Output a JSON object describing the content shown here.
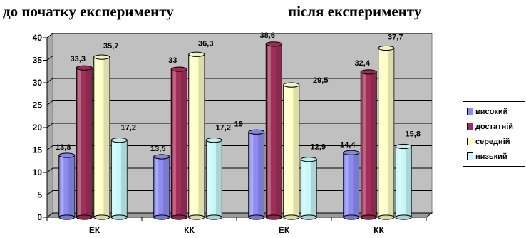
{
  "headings": {
    "before": "до початку експерименту",
    "after": "після експерименту"
  },
  "chart_data": {
    "type": "bar",
    "title": "",
    "xlabel": "",
    "ylabel": "",
    "categories": [
      "ЕК",
      "КК",
      "ЕК",
      "КК"
    ],
    "ylim": [
      0,
      40
    ],
    "yticks": [
      0,
      5,
      10,
      15,
      20,
      25,
      30,
      35,
      40
    ],
    "grid": true,
    "legend_position": "right",
    "series": [
      {
        "name": "високий",
        "color": "#8c8cf0",
        "values": [
          13.8,
          13.5,
          19,
          14.4
        ],
        "labels": [
          "13,8",
          "13,5",
          "19",
          "14,4"
        ]
      },
      {
        "name": "достатній",
        "color": "#a0305a",
        "values": [
          33.3,
          33,
          38.6,
          32.4
        ],
        "labels": [
          "33,3",
          "33",
          "38,6",
          "32,4"
        ]
      },
      {
        "name": "середній",
        "color": "#ffffc8",
        "values": [
          35.7,
          36.3,
          29.5,
          37.7
        ],
        "labels": [
          "35,7",
          "36,3",
          "29,5",
          "37,7"
        ]
      },
      {
        "name": "низький",
        "color": "#c8f8f8",
        "values": [
          17.2,
          17.2,
          12.9,
          15.8
        ],
        "labels": [
          "17,2",
          "17,2",
          "12,9",
          "15,8"
        ]
      }
    ]
  }
}
